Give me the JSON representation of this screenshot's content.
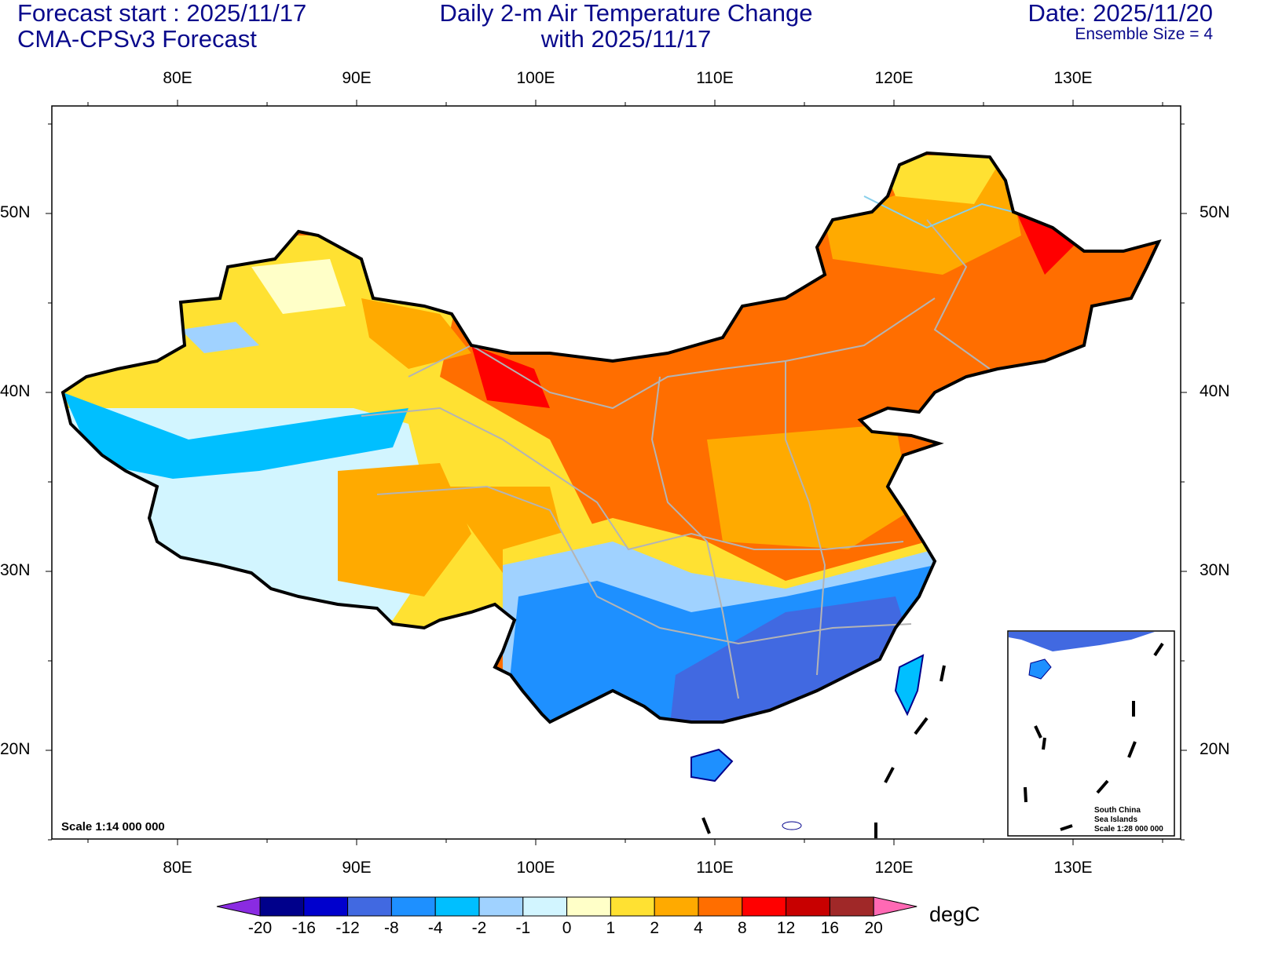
{
  "header": {
    "forecast_start": "Forecast start : 2025/11/17",
    "model": "CMA-CPSv3 Forecast",
    "title_line1": "Daily 2-m Air Temperature Change",
    "title_line2": "with 2025/11/17",
    "date": "Date: 2025/11/20",
    "ensemble": "Ensemble Size = 4"
  },
  "map": {
    "lon_labels": [
      "80E",
      "90E",
      "100E",
      "110E",
      "120E",
      "130E"
    ],
    "lat_labels": [
      "50N",
      "40N",
      "30N",
      "20N"
    ],
    "scale_text": "Scale 1:14 000 000",
    "inset": {
      "line1": "South China",
      "line2": "Sea Islands",
      "line3": "Scale 1:28 000 000"
    }
  },
  "colorbar": {
    "unit": "degC",
    "labels": [
      "-20",
      "-16",
      "-12",
      "-8",
      "-4",
      "-2",
      "-1",
      "0",
      "1",
      "2",
      "4",
      "8",
      "12",
      "16",
      "20"
    ],
    "colors": [
      "#00008b",
      "#0000cd",
      "#4169e1",
      "#1e90ff",
      "#00bfff",
      "#a0d2ff",
      "#d2f5ff",
      "#ffffc8",
      "#ffe132",
      "#ffaa00",
      "#ff6e00",
      "#ff0000",
      "#c80000",
      "#a02828"
    ],
    "low_color": "#8a2be2",
    "high_color": "#ff69b4"
  }
}
